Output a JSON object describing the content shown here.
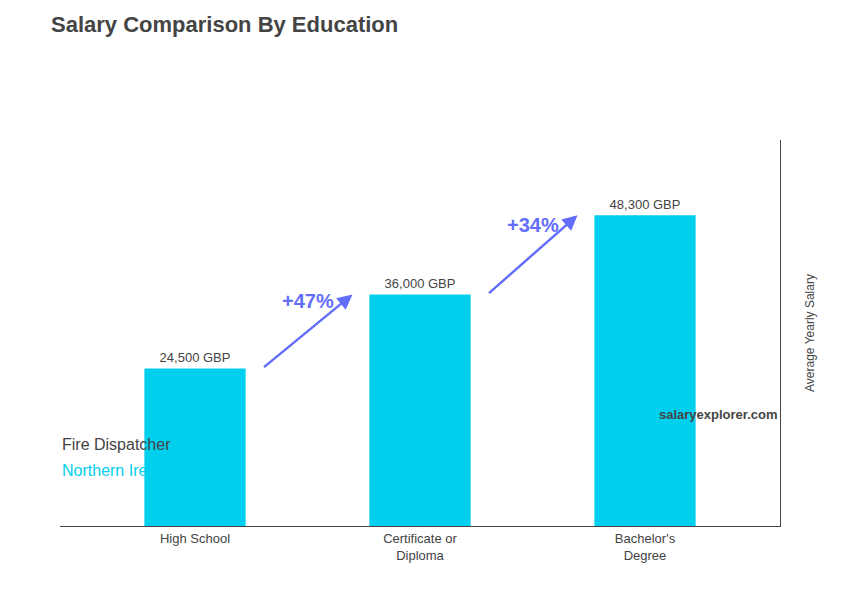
{
  "chart_data": {
    "type": "bar",
    "title": "Salary Comparison By Education",
    "subtitle": [
      "Fire Dispatcher",
      "Northern Ireland"
    ],
    "source": "salaryexplorer.com",
    "ylabel": "Average Yearly Salary",
    "categories": [
      "High School",
      "Certificate or\nDiploma",
      "Bachelor's\nDegree"
    ],
    "values": [
      24500,
      36000,
      48300
    ],
    "value_labels": [
      "24,500 GBP",
      "36,000 GBP",
      "48,300 GBP"
    ],
    "data_labels": true,
    "color": "#00cfee",
    "ylim": [
      0,
      60000
    ],
    "grid": false,
    "tick_labels": "x",
    "annotations": [
      {
        "text": "+47%",
        "from": "High School",
        "to": "Certificate or\nDiploma"
      },
      {
        "text": "+34%",
        "from": "Certificate or\nDiploma",
        "to": "Bachelor's\nDegree"
      }
    ]
  }
}
